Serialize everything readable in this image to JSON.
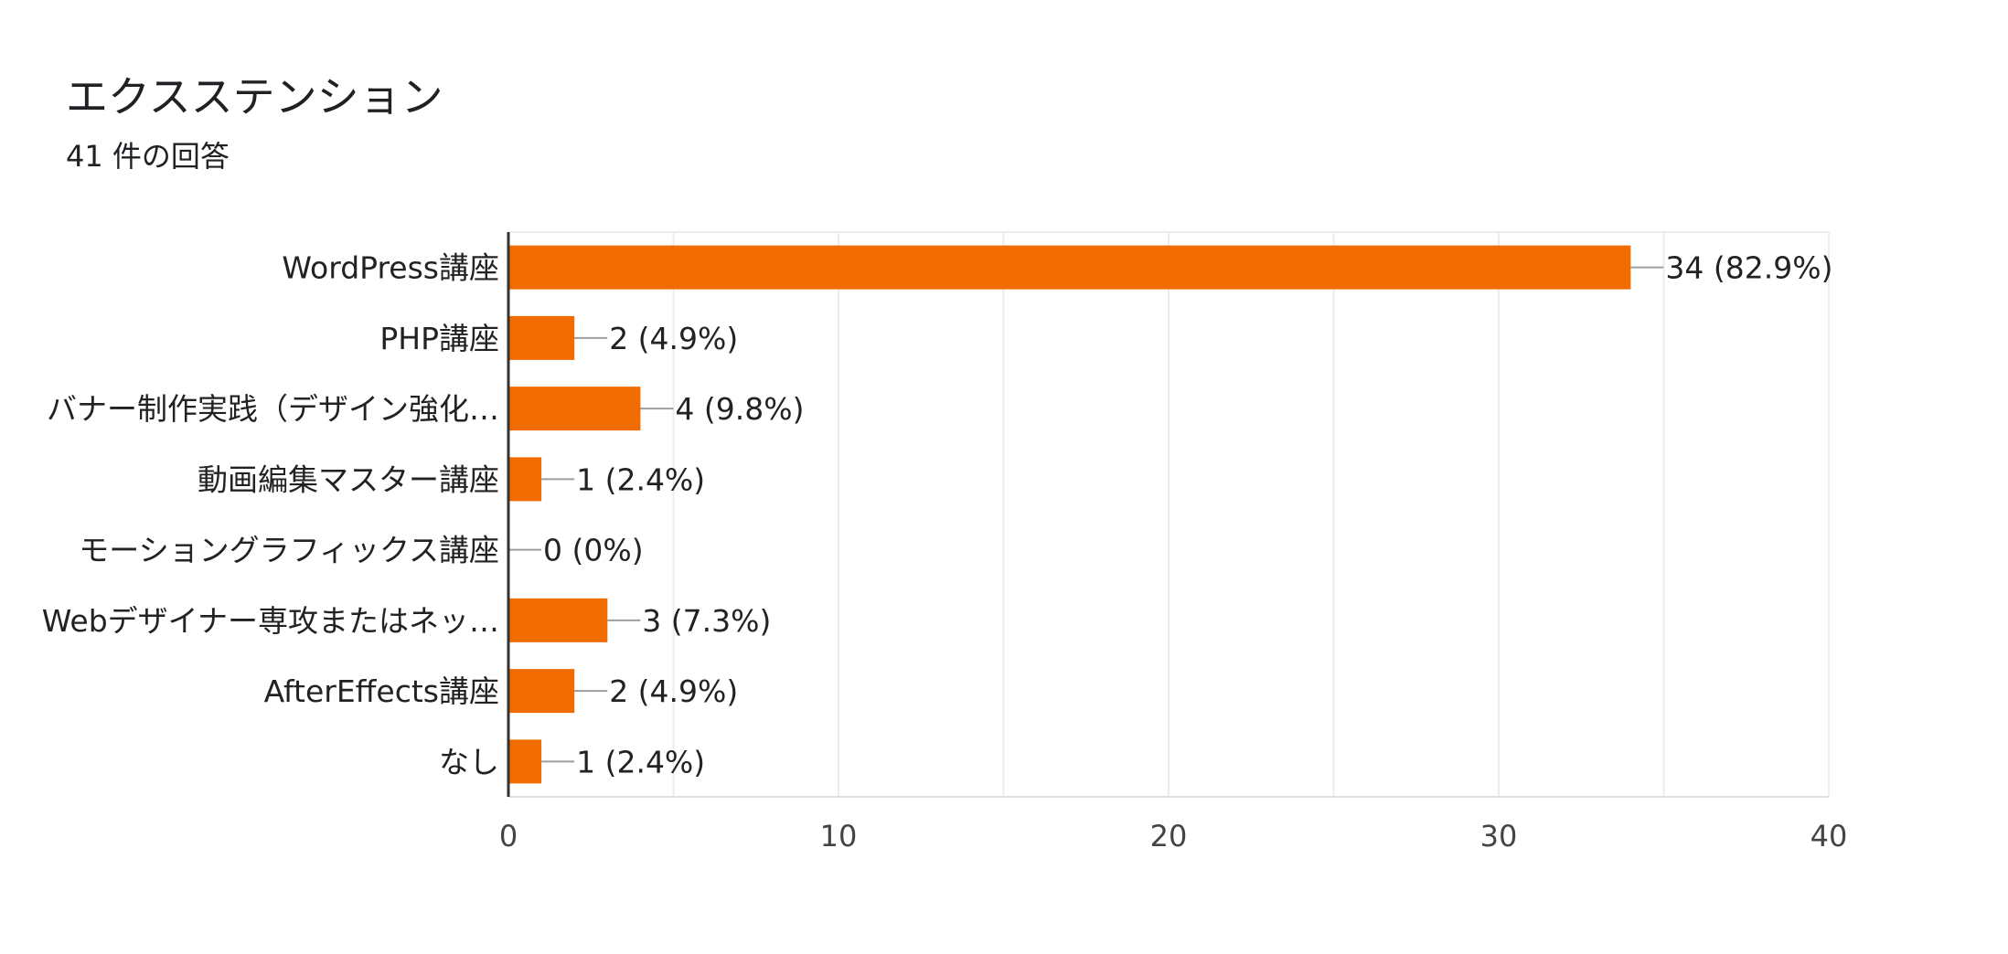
{
  "header": {
    "title": "エクスステンション",
    "subtitle": "41 件の回答"
  },
  "chart_data": {
    "type": "bar",
    "orientation": "horizontal",
    "title": "エクスステンション",
    "subtitle": "41 件の回答",
    "categories": [
      "WordPress講座",
      "PHP講座",
      "バナー制作実践（デザイン強化…",
      "動画編集マスター講座",
      "モーショングラフィックス講座",
      "Webデザイナー専攻またはネッ…",
      "AfterEffects講座",
      "なし"
    ],
    "values": [
      34,
      2,
      4,
      1,
      0,
      3,
      2,
      1
    ],
    "value_labels": [
      "34 (82.9%)",
      "2 (4.9%)",
      "4 (9.8%)",
      "1 (2.4%)",
      "0 (0%)",
      "3 (7.3%)",
      "2 (4.9%)",
      "1 (2.4%)"
    ],
    "xlim": [
      0,
      40
    ],
    "xticks": [
      "0",
      "10",
      "20",
      "30",
      "40"
    ],
    "grid": true,
    "legend": "none",
    "bar_color": "#f06c00"
  }
}
